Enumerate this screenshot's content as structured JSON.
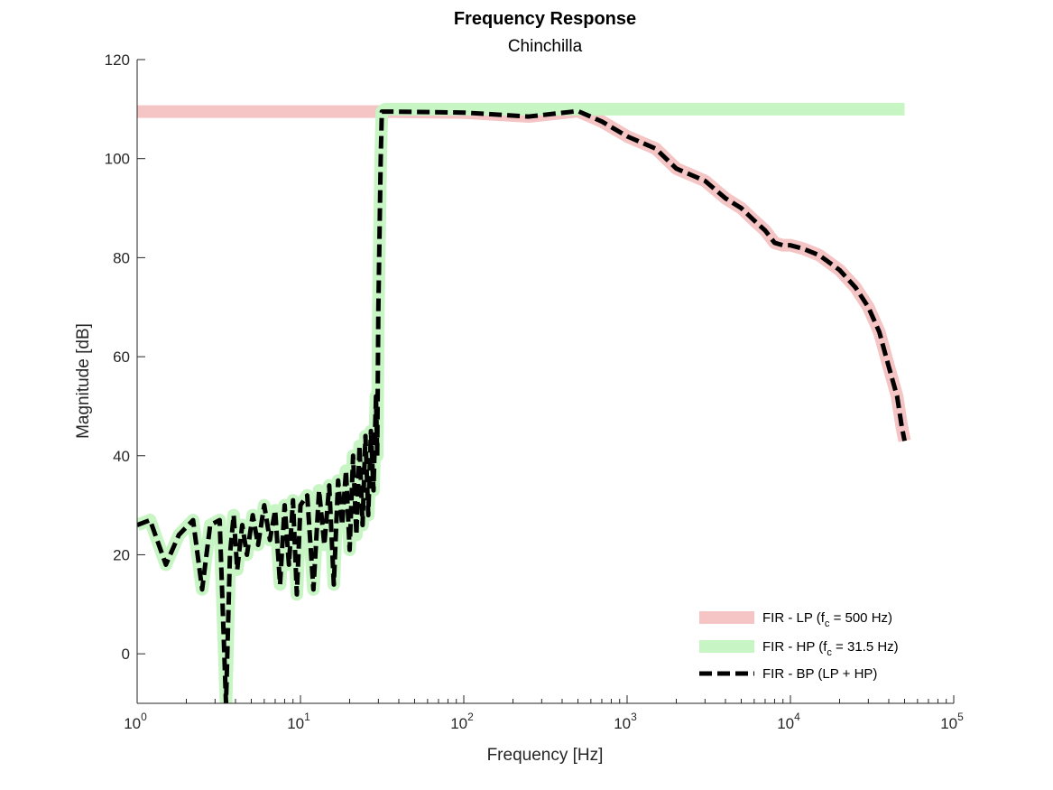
{
  "chart_data": {
    "type": "line",
    "title": "Frequency Response",
    "subtitle": "Chinchilla",
    "xlabel": "Frequency [Hz]",
    "ylabel": "Magnitude [dB]",
    "xscale": "log",
    "xlim": [
      1,
      100000
    ],
    "ylim": [
      -10,
      120
    ],
    "x_ticks": [
      {
        "base": "10",
        "exp": "0",
        "value": 1
      },
      {
        "base": "10",
        "exp": "1",
        "value": 10
      },
      {
        "base": "10",
        "exp": "2",
        "value": 100
      },
      {
        "base": "10",
        "exp": "3",
        "value": 1000
      },
      {
        "base": "10",
        "exp": "4",
        "value": 10000
      },
      {
        "base": "10",
        "exp": "5",
        "value": 100000
      }
    ],
    "y_ticks": [
      0,
      20,
      40,
      60,
      80,
      100,
      120
    ],
    "grid": false,
    "legend_position": "bottom-right",
    "legend": [
      {
        "prefix": "FIR - LP (f",
        "sub": "c",
        "suffix": " = 500 Hz)",
        "color": "#f5c4c4",
        "style": "thick"
      },
      {
        "prefix": "FIR - HP (f",
        "sub": "c",
        "suffix": " = 31.5 Hz)",
        "color": "#c8f5c4",
        "style": "thick"
      },
      {
        "prefix": "FIR - BP (LP + HP)",
        "sub": "",
        "suffix": "",
        "color": "#000000",
        "style": "dashed"
      }
    ],
    "series": [
      {
        "color": "#f5c4c4",
        "x": [
          1,
          30,
          35,
          100,
          250,
          500,
          700,
          1000,
          1500,
          2000,
          3000,
          4000,
          5000,
          6000,
          7000,
          8000,
          9000,
          10000,
          12000,
          15000,
          20000,
          25000,
          30000,
          35000,
          40000,
          45000,
          48000,
          50000
        ],
        "y": [
          109.5,
          109.5,
          109.5,
          109.3,
          108.5,
          109.6,
          107.5,
          104.5,
          102,
          98,
          95.5,
          92,
          90,
          87.5,
          85.5,
          83,
          82.5,
          82.5,
          81.8,
          80.5,
          77.5,
          74,
          70,
          65,
          58,
          52,
          46,
          43
        ]
      },
      {
        "color": "#c8f5c4",
        "x": [
          1,
          1.2,
          1.5,
          1.8,
          2.2,
          2.5,
          2.8,
          3.2,
          3.5,
          3.7,
          3.9,
          4.1,
          4.4,
          4.7,
          5.1,
          5.5,
          6,
          6.5,
          7,
          7.5,
          8,
          8.5,
          9,
          9.5,
          10,
          11,
          12,
          13,
          14,
          15,
          16,
          17,
          18,
          19,
          20,
          21,
          22,
          23,
          24,
          25,
          26,
          27,
          28,
          29,
          29.5,
          30,
          31,
          31.5,
          33,
          35,
          50,
          100,
          250,
          500,
          1000,
          2000,
          5000,
          10000,
          20000,
          50000
        ],
        "y": [
          26,
          27,
          18,
          24,
          27,
          13,
          26,
          27,
          -10,
          20,
          28,
          17,
          26,
          20,
          28,
          22,
          30,
          23,
          29,
          14,
          30,
          18,
          31,
          12,
          30,
          32,
          13,
          33,
          22,
          34,
          14,
          35,
          26,
          37,
          21,
          40,
          24,
          42,
          26,
          44,
          28,
          45,
          33,
          52,
          40,
          70,
          100,
          109.5,
          110,
          110,
          110,
          110,
          110,
          110,
          110,
          110,
          110,
          110,
          110,
          110
        ]
      },
      {
        "color": "#000000",
        "x": [
          1,
          1.2,
          1.5,
          1.8,
          2.2,
          2.5,
          2.8,
          3.2,
          3.5,
          3.7,
          3.9,
          4.1,
          4.4,
          4.7,
          5.1,
          5.5,
          6,
          6.5,
          7,
          7.5,
          8,
          8.5,
          9,
          9.5,
          10,
          11,
          12,
          13,
          14,
          15,
          16,
          17,
          18,
          19,
          20,
          21,
          22,
          23,
          24,
          25,
          26,
          27,
          28,
          29,
          29.5,
          30,
          31,
          31.5,
          33,
          35,
          100,
          250,
          500,
          700,
          1000,
          1500,
          2000,
          3000,
          4000,
          5000,
          6000,
          7000,
          8000,
          9000,
          10000,
          12000,
          15000,
          20000,
          25000,
          30000,
          35000,
          40000,
          45000,
          48000,
          50000
        ],
        "y": [
          26,
          27,
          18,
          24,
          27,
          13,
          26,
          27,
          -10,
          20,
          28,
          17,
          26,
          20,
          28,
          22,
          30,
          23,
          29,
          14,
          30,
          18,
          31,
          12,
          30,
          32,
          13,
          33,
          22,
          34,
          14,
          35,
          26,
          37,
          21,
          40,
          24,
          42,
          26,
          44,
          28,
          45,
          33,
          52,
          40,
          70,
          100,
          109.5,
          109.5,
          109.5,
          109.3,
          108.5,
          109.6,
          107.5,
          104.5,
          102,
          98,
          95.5,
          92,
          90,
          87.5,
          85.5,
          83,
          82.5,
          82.5,
          81.8,
          80.5,
          77.5,
          74,
          70,
          65,
          58,
          52,
          46,
          43
        ]
      }
    ]
  }
}
